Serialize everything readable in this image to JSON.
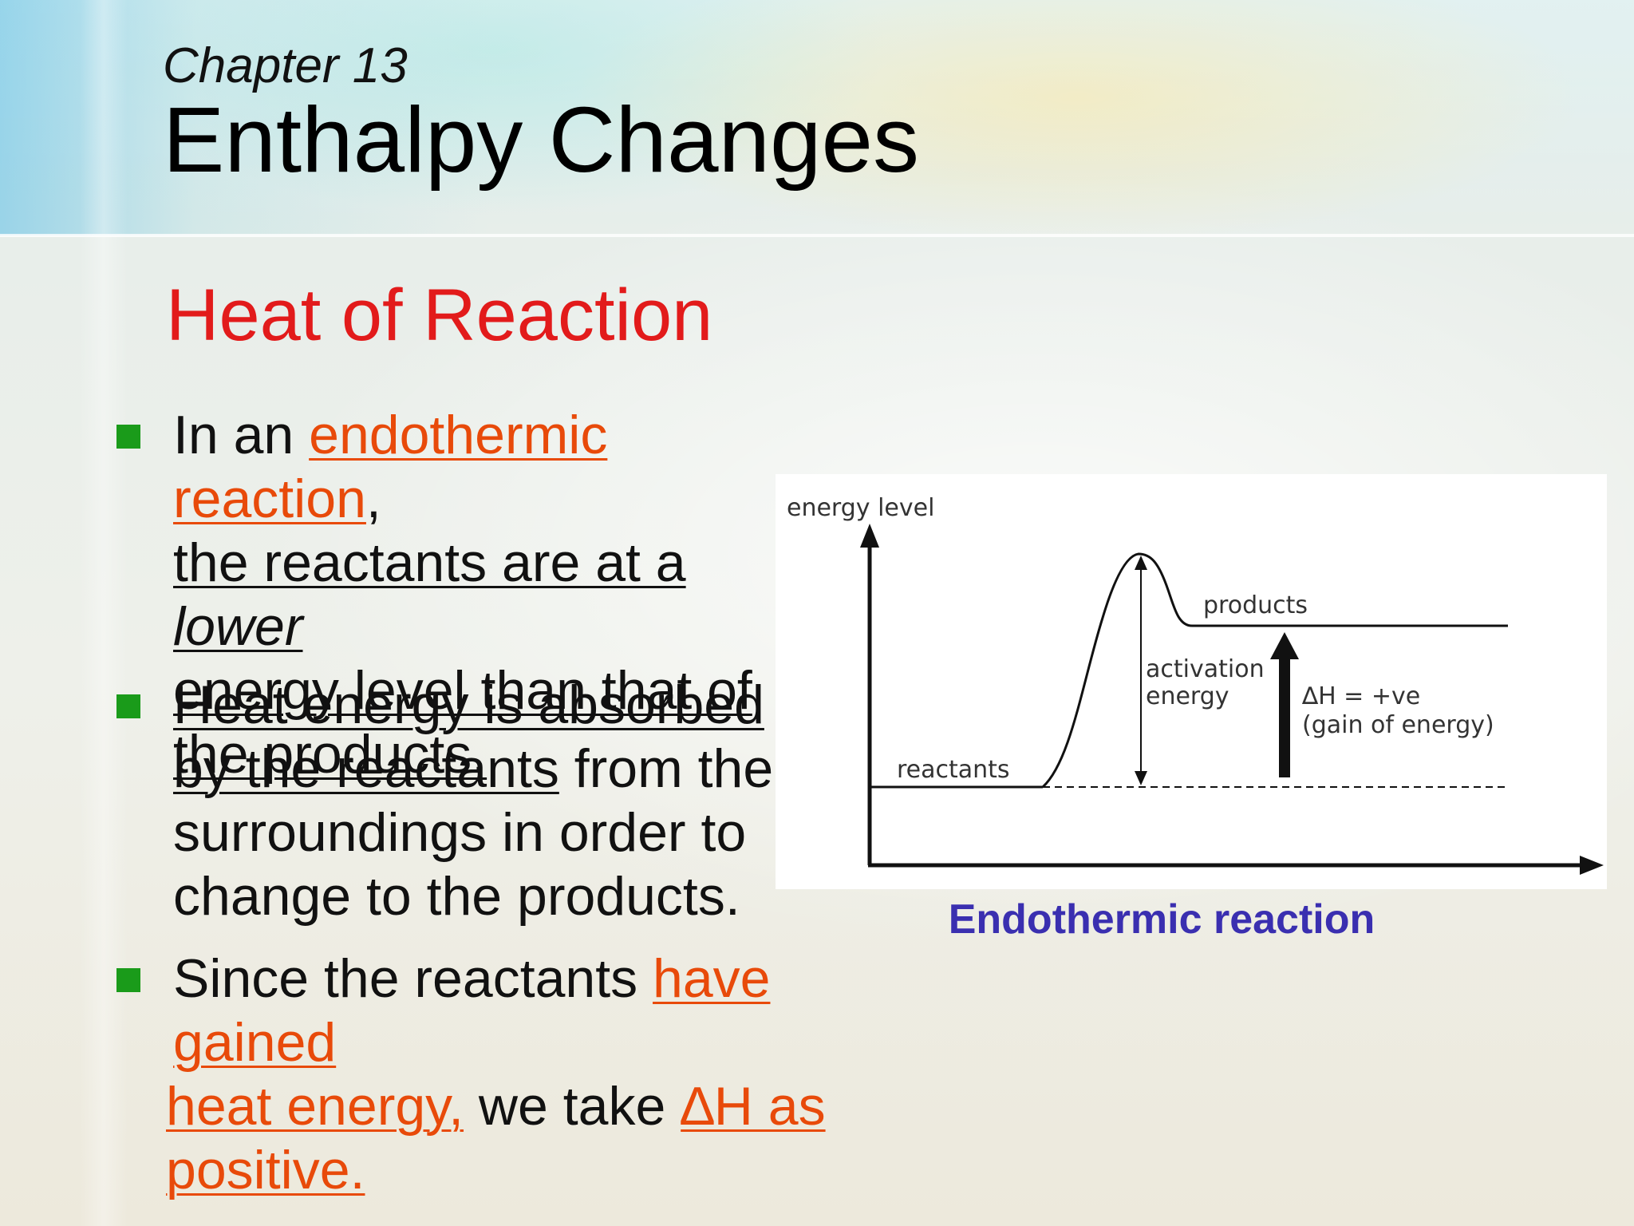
{
  "header": {
    "chapter": "Chapter 13",
    "title": "Enthalpy Changes"
  },
  "section_title": "Heat of Reaction",
  "bullets": [
    {
      "segments": [
        {
          "text": "In an "
        },
        {
          "text": "endothermic reaction"
        },
        {
          "text": ","
        },
        {
          "text": "the reactants are at a "
        },
        {
          "text": "lower"
        },
        {
          "text": "energy level than that of"
        },
        {
          "text": "the products."
        }
      ]
    },
    {
      "segments": [
        {
          "text": "Heat energy is absorbed"
        },
        {
          "text": "by the reactants"
        },
        {
          "text": " from the"
        },
        {
          "text": "surroundings in order to"
        },
        {
          "text": "change to the products."
        }
      ]
    },
    {
      "segments": [
        {
          "text": "Since the reactants "
        },
        {
          "text": "have gained"
        },
        {
          "text": "heat energy,"
        },
        {
          "text": " we take "
        },
        {
          "text": "∆H as"
        },
        {
          "text": "positive."
        }
      ]
    }
  ],
  "diagram": {
    "y_axis_label": "energy level",
    "products_label": "products",
    "reactants_label": "reactants",
    "activation_label_line1": "activation",
    "activation_label_line2": "energy",
    "delta_h_line1": "∆H = +ve",
    "delta_h_line2": "(gain of energy)",
    "caption": "Endothermic reaction"
  },
  "colors": {
    "title": "#000000",
    "section_title": "#e21b1b",
    "highlight": "#e84a0a",
    "bullet_marker": "#1a9b1a",
    "caption": "#3a2fb0"
  }
}
